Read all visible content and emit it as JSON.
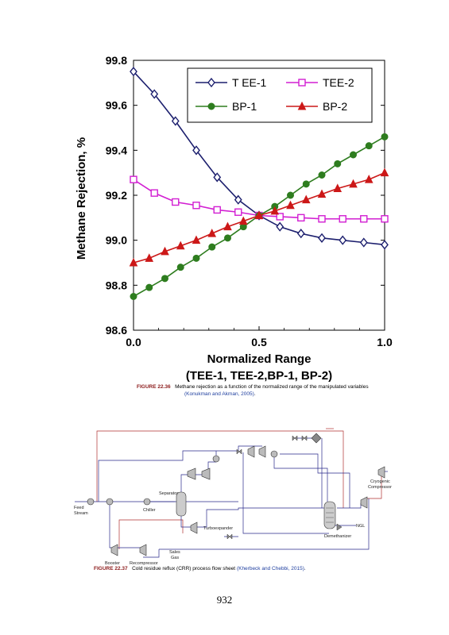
{
  "figure_36": {
    "label": "FIGURE 22.36",
    "caption": "Methane rejection as a function of the normalized range of the manipulated variables",
    "citation": "(Konukman and Akman, 2005)",
    "citation_end": "."
  },
  "chart_data": {
    "type": "line",
    "ylabel": "Methane Rejection, %",
    "xlabel": "Normalized Range",
    "xlabel_sub": "(TEE-1, TEE-2,BP-1, BP-2)",
    "xlim": [
      0.0,
      1.0
    ],
    "ylim": [
      98.6,
      99.8
    ],
    "xticks": [
      "0.0",
      "0.5",
      "1.0"
    ],
    "yticks": [
      "98.6",
      "98.8",
      "99.0",
      "99.2",
      "99.4",
      "99.6",
      "99.8"
    ],
    "legend_position": "top-right",
    "x": [
      0.0,
      0.083,
      0.167,
      0.25,
      0.333,
      0.417,
      0.5,
      0.583,
      0.667,
      0.75,
      0.833,
      0.917,
      1.0
    ],
    "series": [
      {
        "name": "T EE-1",
        "color": "#1c1f6e",
        "marker": "diamond-open",
        "values": [
          99.75,
          99.65,
          99.53,
          99.4,
          99.28,
          99.18,
          99.11,
          99.06,
          99.03,
          99.01,
          99.0,
          98.99,
          98.98
        ]
      },
      {
        "name": "TEE-2",
        "color": "#d21fd2",
        "marker": "square-open",
        "values": [
          99.27,
          99.21,
          99.17,
          99.155,
          99.135,
          99.125,
          99.11,
          99.105,
          99.1,
          99.095,
          99.095,
          99.095,
          99.095
        ]
      },
      {
        "name": "BP-1",
        "color": "#2e7d1f",
        "marker": "circle-filled",
        "values": [
          98.75,
          98.79,
          98.83,
          98.88,
          98.92,
          98.97,
          99.01,
          99.06,
          99.11,
          99.15,
          99.2,
          99.25,
          99.29,
          99.34,
          99.38,
          99.42,
          99.46
        ],
        "x": [
          0.0,
          0.0625,
          0.125,
          0.1875,
          0.25,
          0.3125,
          0.375,
          0.4375,
          0.5,
          0.5625,
          0.625,
          0.6875,
          0.75,
          0.8125,
          0.875,
          0.9375,
          1.0
        ]
      },
      {
        "name": "BP-2",
        "color": "#cc1818",
        "marker": "triangle-filled",
        "values": [
          98.9,
          98.92,
          98.95,
          98.975,
          99.0,
          99.03,
          99.06,
          99.085,
          99.11,
          99.13,
          99.155,
          99.18,
          99.205,
          99.23,
          99.25,
          99.27,
          99.3
        ],
        "x": [
          0.0,
          0.0625,
          0.125,
          0.1875,
          0.25,
          0.3125,
          0.375,
          0.4375,
          0.5,
          0.5625,
          0.625,
          0.6875,
          0.75,
          0.8125,
          0.875,
          0.9375,
          1.0
        ]
      }
    ]
  },
  "figure_37": {
    "label": "FIGURE 22.37",
    "caption": "Cold residue reflux (CRR) process flow sheet",
    "citation": "(Kherbeck and Chebbi, 2015)",
    "citation_end": ".",
    "labels": {
      "feed": "Feed",
      "stream": "Stream",
      "separator": "Separator",
      "chiller": "Chiller",
      "turboexpander": "Turboexpander",
      "demethanizer": "Demethanizer",
      "ngl": "NGL",
      "cryogenic": "Cryogenic",
      "compressor": "Compressor",
      "sales": "Sales",
      "gas": "Gas",
      "booster": "Booster",
      "recompressor": "Recompressor"
    }
  },
  "page_number": "932"
}
